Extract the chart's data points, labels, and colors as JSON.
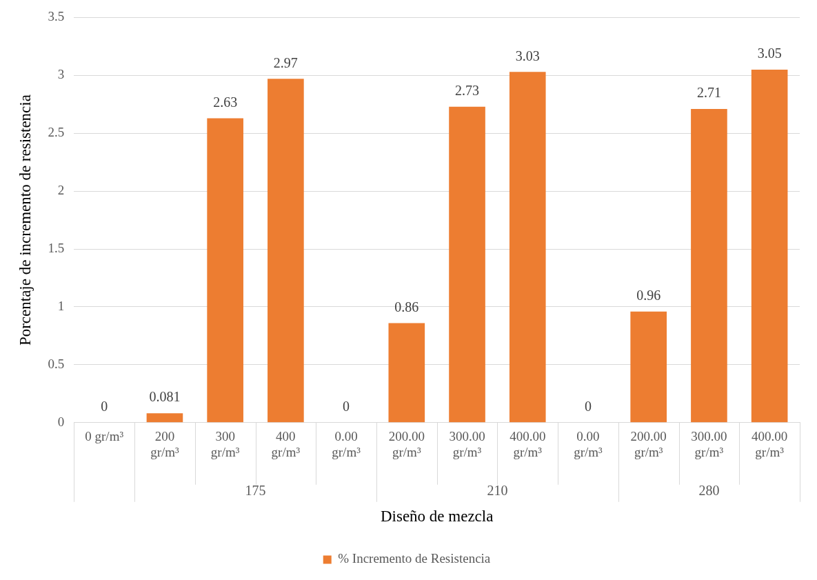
{
  "chart_data": {
    "type": "bar",
    "xlabel": "Diseño de mezcla",
    "ylabel": "Porcentaje de incremento de resistencia",
    "categories": [
      "0 gr/m³",
      "200 gr/m³",
      "300 gr/m³",
      "400 gr/m³",
      "0.00 gr/m³",
      "200.00 gr/m³",
      "300.00 gr/m³",
      "400.00 gr/m³",
      "0.00 gr/m³",
      "200.00 gr/m³",
      "300.00 gr/m³",
      "400.00 gr/m³"
    ],
    "series": [
      {
        "name": "% Incremento de Resistencia",
        "color": "#ed7d31",
        "values": [
          0,
          0.081,
          2.63,
          2.97,
          0,
          0.86,
          2.73,
          3.03,
          0,
          0.96,
          2.71,
          3.05
        ]
      }
    ],
    "annotations": [
      "175",
      "210",
      "280"
    ],
    "ylim": [
      0,
      3.5
    ],
    "yticks": [
      0,
      0.5,
      1,
      1.5,
      2,
      2.5,
      3,
      3.5
    ],
    "grid": "y",
    "legend": "bottom",
    "data_labels": true
  }
}
